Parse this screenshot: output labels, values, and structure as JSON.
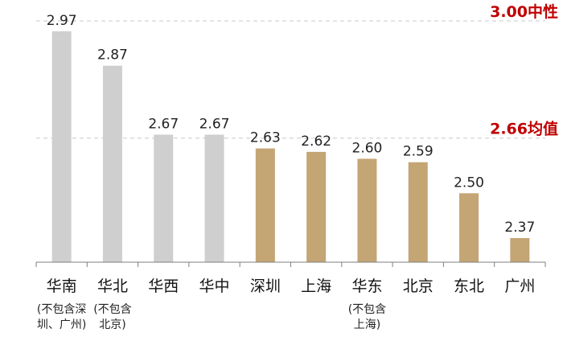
{
  "chart_data": {
    "type": "bar",
    "categories": [
      "华南",
      "华北",
      "华西",
      "华中",
      "深圳",
      "上海",
      "华东",
      "北京",
      "东北",
      "广州"
    ],
    "category_notes": [
      [
        "(不包含深",
        "圳、广州)"
      ],
      [
        "(不包含",
        "北京)"
      ],
      [],
      [],
      [],
      [],
      [
        "(不包含",
        "上海)"
      ],
      [],
      [],
      []
    ],
    "values": [
      2.97,
      2.87,
      2.67,
      2.67,
      2.63,
      2.62,
      2.6,
      2.59,
      2.5,
      2.37
    ],
    "value_labels": [
      "2.97",
      "2.87",
      "2.67",
      "2.67",
      "2.63",
      "2.62",
      "2.60",
      "2.59",
      "2.50",
      "2.37"
    ],
    "highlight_from_index": 4,
    "colors": {
      "muted": "#d0cfcf",
      "highlight": "#c4a574",
      "reference": "#c00000",
      "grid": "#c8c8c8"
    },
    "reference_lines": [
      {
        "value": 3.0,
        "label": "3.00中性"
      },
      {
        "value": 2.66,
        "label": "2.66均值"
      }
    ],
    "ylim": [
      2.3,
      3.0
    ],
    "title": "",
    "xlabel": "",
    "ylabel": ""
  }
}
